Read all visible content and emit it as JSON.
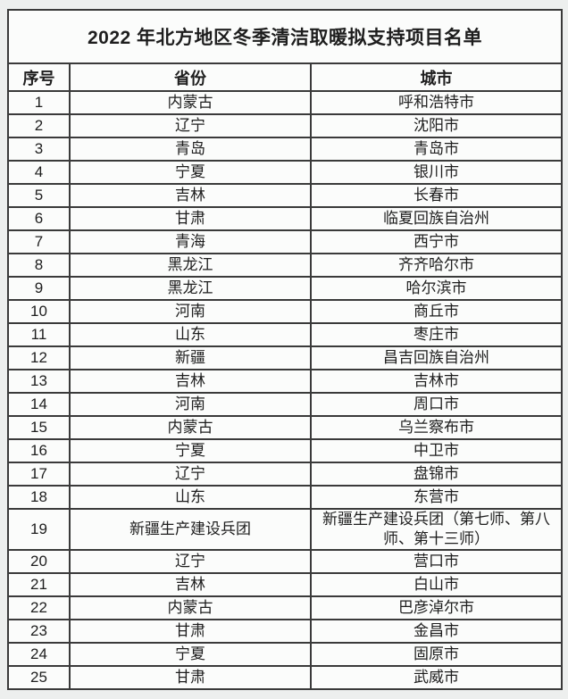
{
  "table": {
    "title": "2022 年北方地区冬季清洁取暖拟支持项目名单",
    "columns": [
      "序号",
      "省份",
      "城市"
    ],
    "rows": [
      {
        "no": "1",
        "province": "内蒙古",
        "city": "呼和浩特市"
      },
      {
        "no": "2",
        "province": "辽宁",
        "city": "沈阳市"
      },
      {
        "no": "3",
        "province": "青岛",
        "city": "青岛市"
      },
      {
        "no": "4",
        "province": "宁夏",
        "city": "银川市"
      },
      {
        "no": "5",
        "province": "吉林",
        "city": "长春市"
      },
      {
        "no": "6",
        "province": "甘肃",
        "city": "临夏回族自治州"
      },
      {
        "no": "7",
        "province": "青海",
        "city": "西宁市"
      },
      {
        "no": "8",
        "province": "黑龙江",
        "city": "齐齐哈尔市"
      },
      {
        "no": "9",
        "province": "黑龙江",
        "city": "哈尔滨市"
      },
      {
        "no": "10",
        "province": "河南",
        "city": "商丘市"
      },
      {
        "no": "11",
        "province": "山东",
        "city": "枣庄市"
      },
      {
        "no": "12",
        "province": "新疆",
        "city": "昌吉回族自治州"
      },
      {
        "no": "13",
        "province": "吉林",
        "city": "吉林市"
      },
      {
        "no": "14",
        "province": "河南",
        "city": "周口市"
      },
      {
        "no": "15",
        "province": "内蒙古",
        "city": "乌兰察布市"
      },
      {
        "no": "16",
        "province": "宁夏",
        "city": "中卫市"
      },
      {
        "no": "17",
        "province": "辽宁",
        "city": "盘锦市"
      },
      {
        "no": "18",
        "province": "山东",
        "city": "东营市"
      },
      {
        "no": "19",
        "province": "新疆生产建设兵团",
        "city": "新疆生产建设兵团（第七师、第八师、第十三师）"
      },
      {
        "no": "20",
        "province": "辽宁",
        "city": "营口市"
      },
      {
        "no": "21",
        "province": "吉林",
        "city": "白山市"
      },
      {
        "no": "22",
        "province": "内蒙古",
        "city": "巴彦淖尔市"
      },
      {
        "no": "23",
        "province": "甘肃",
        "city": "金昌市"
      },
      {
        "no": "24",
        "province": "宁夏",
        "city": "固原市"
      },
      {
        "no": "25",
        "province": "甘肃",
        "city": "武威市"
      }
    ]
  }
}
